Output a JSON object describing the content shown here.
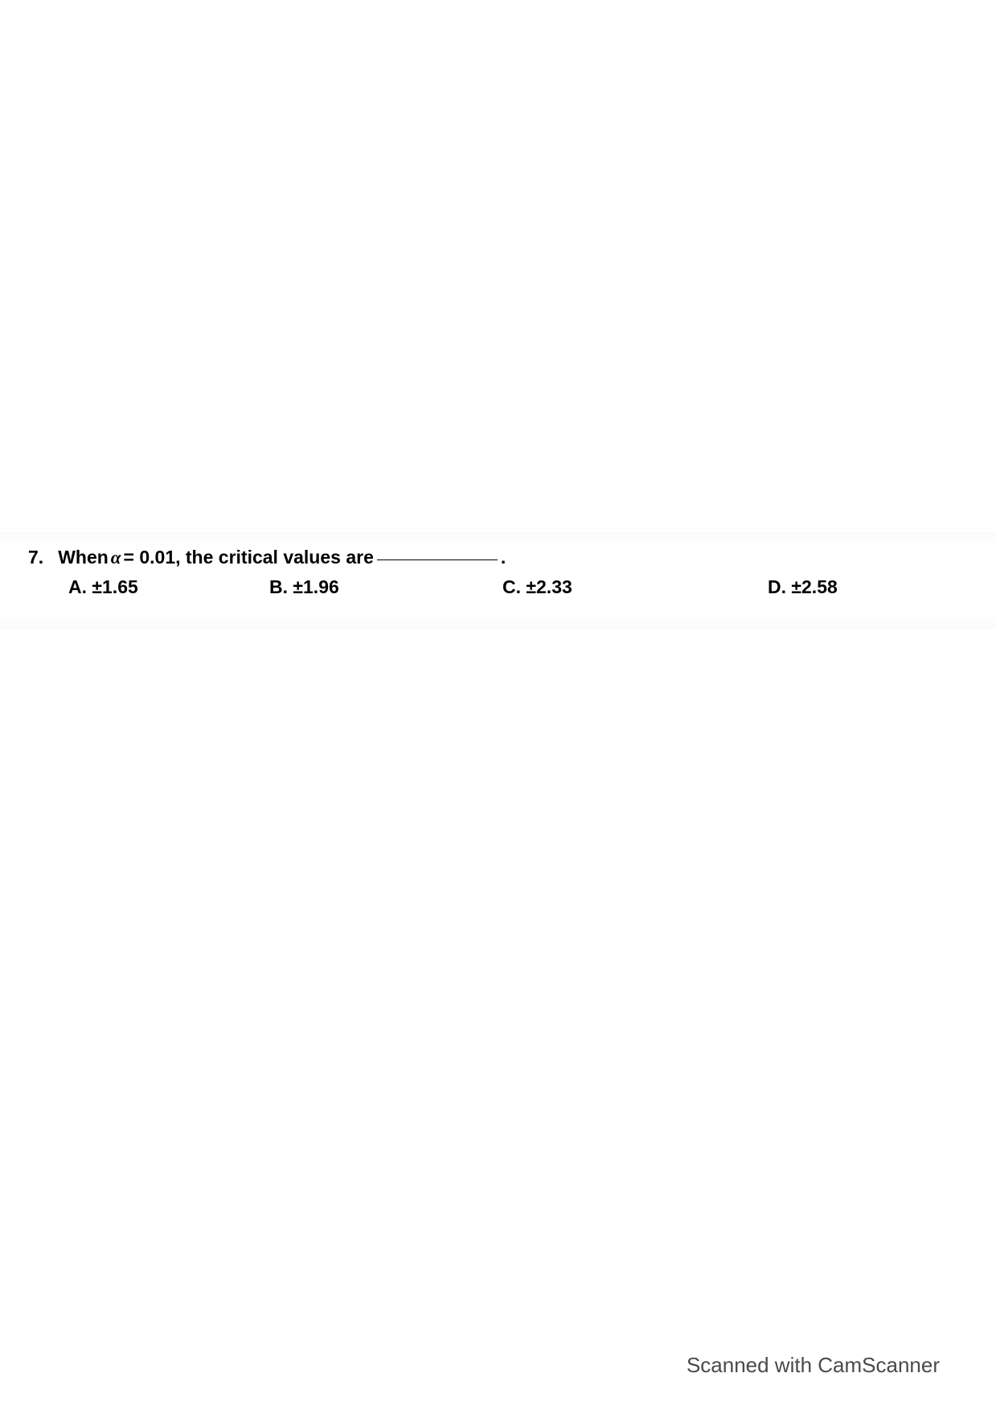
{
  "question": {
    "number": "7.",
    "text_before_alpha": "When ",
    "alpha_symbol": "α",
    "text_after_alpha": " = 0.01, the critical values are ",
    "text_end": "."
  },
  "options": {
    "a": "A.  ±1.65",
    "b": "B. ±1.96",
    "c": "C. ±2.33",
    "d": "D. ±2.58"
  },
  "watermark": "Scanned with CamScanner"
}
